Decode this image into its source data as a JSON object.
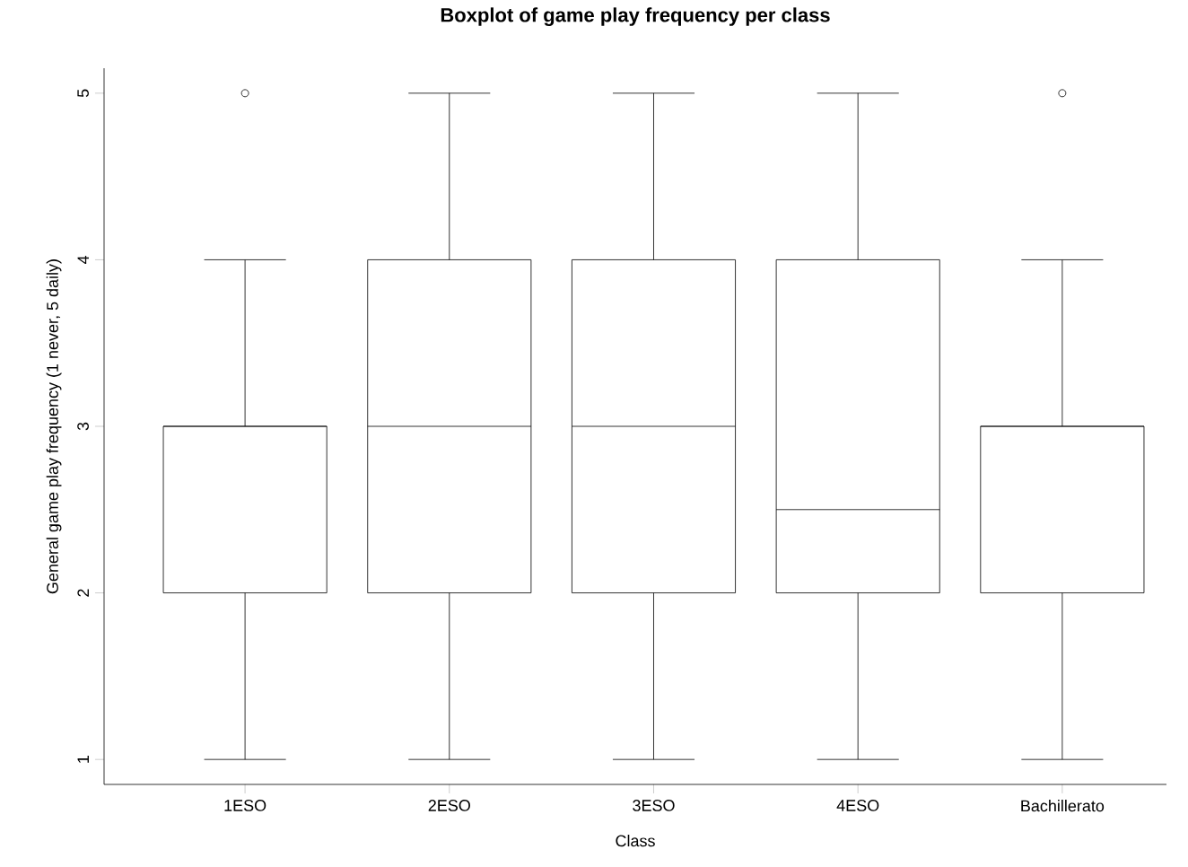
{
  "chart_data": {
    "type": "box",
    "title": "Boxplot of game play frequency per class",
    "xlabel": "Class",
    "ylabel": "General game play frequency (1 never, 5 daily)",
    "categories": [
      "1ESO",
      "2ESO",
      "3ESO",
      "4ESO",
      "Bachillerato"
    ],
    "boxes": [
      {
        "low": 1,
        "q1": 2,
        "median": 3,
        "q3": 3,
        "high": 4,
        "outliers": [
          5
        ]
      },
      {
        "low": 1,
        "q1": 2,
        "median": 3,
        "q3": 4,
        "high": 5
      },
      {
        "low": 1,
        "q1": 2,
        "median": 3,
        "q3": 4,
        "high": 5
      },
      {
        "low": 1,
        "q1": 2,
        "median": 2.5,
        "q3": 4,
        "high": 5
      },
      {
        "low": 1,
        "q1": 2,
        "median": 3,
        "q3": 3,
        "high": 4,
        "outliers": [
          5
        ]
      }
    ],
    "ylim": [
      0.85,
      5.15
    ],
    "yticks": [
      1,
      2,
      3,
      4,
      5
    ]
  }
}
